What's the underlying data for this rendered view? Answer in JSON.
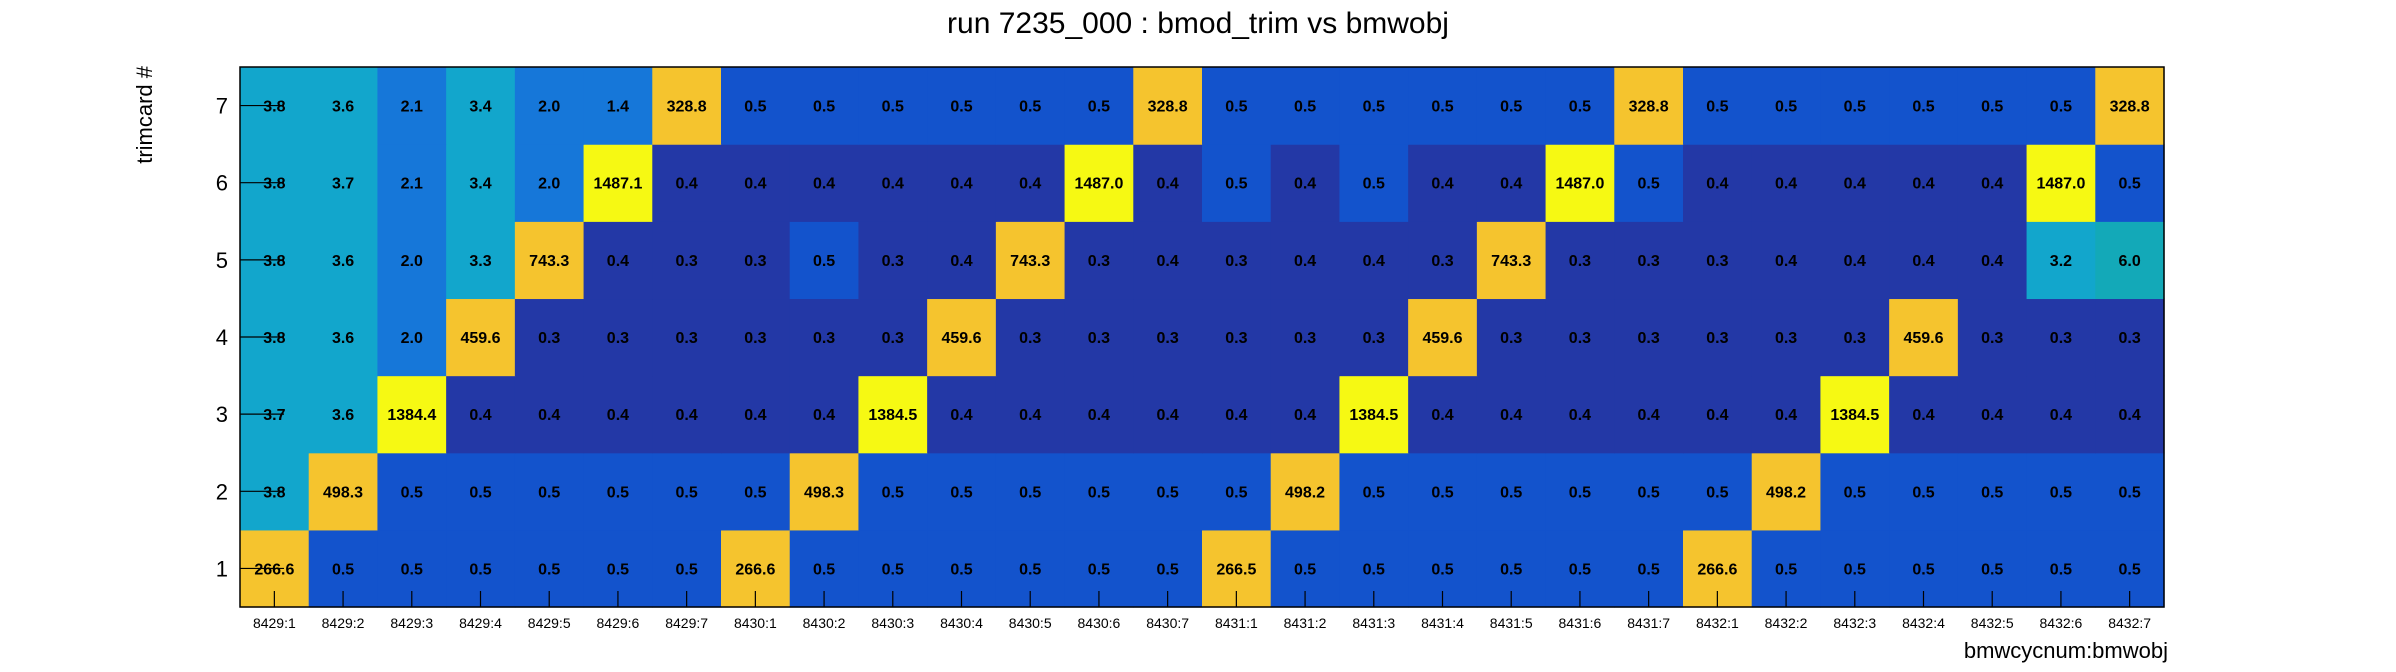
{
  "chart_data": {
    "type": "heatmap",
    "title": "run 7235_000 : bmod_trim vs bmwobj",
    "xlabel": "bmwcycnum:bmwobj",
    "ylabel": "trimcard #",
    "x_categories": [
      "8429:1",
      "8429:2",
      "8429:3",
      "8429:4",
      "8429:5",
      "8429:6",
      "8429:7",
      "8430:1",
      "8430:2",
      "8430:3",
      "8430:4",
      "8430:5",
      "8430:6",
      "8430:7",
      "8431:1",
      "8431:2",
      "8431:3",
      "8431:4",
      "8431:5",
      "8431:6",
      "8431:7",
      "8432:1",
      "8432:2",
      "8432:3",
      "8432:4",
      "8432:5",
      "8432:6",
      "8432:7"
    ],
    "y_categories": [
      "1",
      "2",
      "3",
      "4",
      "5",
      "6",
      "7"
    ],
    "values": [
      [
        "266.6",
        "0.5",
        "0.5",
        "0.5",
        "0.5",
        "0.5",
        "0.5",
        "266.6",
        "0.5",
        "0.5",
        "0.5",
        "0.5",
        "0.5",
        "0.5",
        "266.5",
        "0.5",
        "0.5",
        "0.5",
        "0.5",
        "0.5",
        "0.5",
        "266.6",
        "0.5",
        "0.5",
        "0.5",
        "0.5",
        "0.5",
        "0.5"
      ],
      [
        "3.8",
        "498.3",
        "0.5",
        "0.5",
        "0.5",
        "0.5",
        "0.5",
        "0.5",
        "498.3",
        "0.5",
        "0.5",
        "0.5",
        "0.5",
        "0.5",
        "0.5",
        "498.2",
        "0.5",
        "0.5",
        "0.5",
        "0.5",
        "0.5",
        "0.5",
        "498.2",
        "0.5",
        "0.5",
        "0.5",
        "0.5",
        "0.5"
      ],
      [
        "3.7",
        "3.6",
        "1384.4",
        "0.4",
        "0.4",
        "0.4",
        "0.4",
        "0.4",
        "0.4",
        "1384.5",
        "0.4",
        "0.4",
        "0.4",
        "0.4",
        "0.4",
        "0.4",
        "1384.5",
        "0.4",
        "0.4",
        "0.4",
        "0.4",
        "0.4",
        "0.4",
        "1384.5",
        "0.4",
        "0.4",
        "0.4",
        "0.4"
      ],
      [
        "3.8",
        "3.6",
        "2.0",
        "459.6",
        "0.3",
        "0.3",
        "0.3",
        "0.3",
        "0.3",
        "0.3",
        "459.6",
        "0.3",
        "0.3",
        "0.3",
        "0.3",
        "0.3",
        "0.3",
        "459.6",
        "0.3",
        "0.3",
        "0.3",
        "0.3",
        "0.3",
        "0.3",
        "459.6",
        "0.3",
        "0.3",
        "0.3"
      ],
      [
        "3.8",
        "3.6",
        "2.0",
        "3.3",
        "743.3",
        "0.4",
        "0.3",
        "0.3",
        "0.5",
        "0.3",
        "0.4",
        "743.3",
        "0.3",
        "0.4",
        "0.3",
        "0.4",
        "0.4",
        "0.3",
        "743.3",
        "0.3",
        "0.3",
        "0.3",
        "0.4",
        "0.4",
        "0.4",
        "0.4",
        "3.2",
        "6.0"
      ],
      [
        "3.8",
        "3.7",
        "2.1",
        "3.4",
        "2.0",
        "1487.1",
        "0.4",
        "0.4",
        "0.4",
        "0.4",
        "0.4",
        "0.4",
        "1487.0",
        "0.4",
        "0.5",
        "0.4",
        "0.5",
        "0.4",
        "0.4",
        "1487.0",
        "0.5",
        "0.4",
        "0.4",
        "0.4",
        "0.4",
        "0.4",
        "1487.0",
        "0.5"
      ],
      [
        "3.8",
        "3.6",
        "2.1",
        "3.4",
        "2.0",
        "1.4",
        "328.8",
        "0.5",
        "0.5",
        "0.5",
        "0.5",
        "0.5",
        "0.5",
        "328.8",
        "0.5",
        "0.5",
        "0.5",
        "0.5",
        "0.5",
        "0.5",
        "328.8",
        "0.5",
        "0.5",
        "0.5",
        "0.5",
        "0.5",
        "0.5",
        "328.8"
      ]
    ],
    "color_scale": {
      "high": "#f6f913",
      "mid_high": "#f5c42e",
      "cyan": "#12a6cc",
      "teal_high": "#13a9b8",
      "light_blue": "#0a96d3",
      "mid_blue": "#1677d9",
      "blue": "#1353cc",
      "dark_blue": "#2338a6"
    },
    "grid": false,
    "legend": "none"
  }
}
